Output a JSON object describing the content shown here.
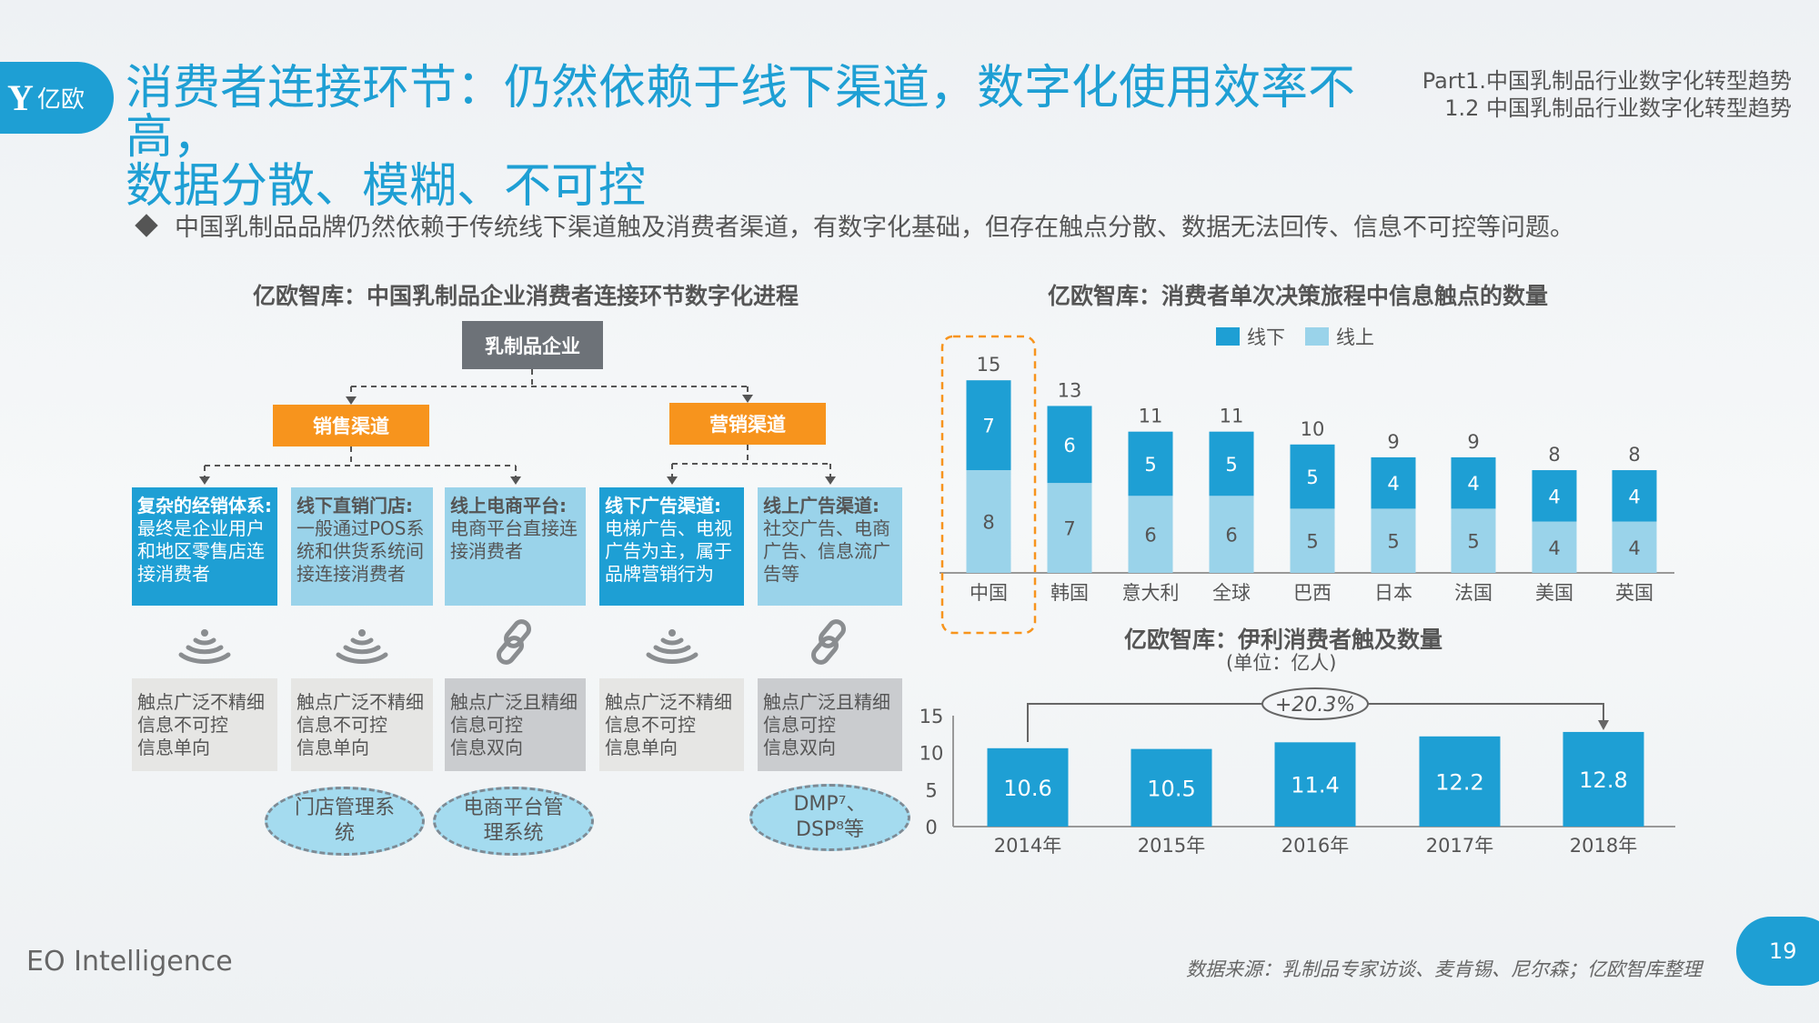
{
  "logo": {
    "text": "亿欧"
  },
  "header": {
    "title_line1": "消费者连接环节：仍然依赖于线下渠道，数字化使用效率不高，",
    "title_line2": "数据分散、模糊、不可控",
    "part": "Part1.中国乳制品行业数字化转型趋势",
    "section": "1.2 中国乳制品行业数字化转型趋势"
  },
  "bullet": "中国乳制品品牌仍然依赖于传统线下渠道触及消费者渠道，有数字化基础，但存在触点分散、数据无法回传、信息不可控等问题。",
  "diagram": {
    "title": "亿欧智库：中国乳制品企业消费者连接环节数字化进程",
    "root": "乳制品企业",
    "branches": [
      "销售渠道",
      "营销渠道"
    ],
    "channels": [
      {
        "head": "复杂的经销体系:",
        "body": "最终是企业用户和地区零售店连接消费者",
        "icon": "signal-icon",
        "touch": [
          "触点广泛不精细",
          "信息不可控",
          "信息单向"
        ]
      },
      {
        "head": "线下直销门店:",
        "body": "一般通过POS系统和供货系统间接连接消费者",
        "icon": "signal-icon",
        "touch": [
          "触点广泛不精细",
          "信息不可控",
          "信息单向"
        ],
        "system": "门店管理系统"
      },
      {
        "head": "线上电商平台:",
        "body": "电商平台直接连接消费者",
        "icon": "link-icon",
        "touch": [
          "触点广泛且精细",
          "信息可控",
          "信息双向"
        ],
        "system": "电商平台管理系统"
      },
      {
        "head": "线下广告渠道:",
        "body": "电梯广告、电视广告为主，属于品牌营销行为",
        "icon": "signal-icon",
        "touch": [
          "触点广泛不精细",
          "信息不可控",
          "信息单向"
        ]
      },
      {
        "head": "线上广告渠道:",
        "body": "社交广告、电商广告、信息流广告等",
        "icon": "link-icon",
        "touch": [
          "触点广泛且精细",
          "信息可控",
          "信息双向"
        ],
        "system": "DMP⁷、DSP⁸等"
      }
    ]
  },
  "chart_data": [
    {
      "type": "bar",
      "stacked": true,
      "title": "亿欧智库：消费者单次决策旅程中信息触点的数量",
      "categories": [
        "中国",
        "韩国",
        "意大利",
        "全球",
        "巴西",
        "日本",
        "法国",
        "美国",
        "英国"
      ],
      "series": [
        {
          "name": "线下",
          "color": "#1e9fd4",
          "values": [
            7,
            6,
            5,
            5,
            5,
            4,
            4,
            4,
            4
          ]
        },
        {
          "name": "线上",
          "color": "#9ad3ea",
          "values": [
            8,
            7,
            6,
            6,
            5,
            5,
            5,
            4,
            4
          ]
        }
      ],
      "totals": [
        15,
        13,
        11,
        11,
        10,
        9,
        9,
        8,
        8
      ],
      "highlight": "中国",
      "legend": "top"
    },
    {
      "type": "bar",
      "title": "亿欧智库：伊利消费者触及数量",
      "subtitle": "(单位：亿人)",
      "categories": [
        "2014年",
        "2015年",
        "2016年",
        "2017年",
        "2018年"
      ],
      "values": [
        10.6,
        10.5,
        11.4,
        12.2,
        12.8
      ],
      "yticks": [
        "0",
        "5",
        "10",
        "15"
      ],
      "ylim": [
        0,
        15
      ],
      "color": "#1e9fd4",
      "annotation": "+20.3%"
    }
  ],
  "footer": {
    "brand": "EO Intelligence",
    "source": "数据来源：乳制品专家访谈、麦肯锡、尼尔森；亿欧智库整理",
    "page": "19"
  }
}
